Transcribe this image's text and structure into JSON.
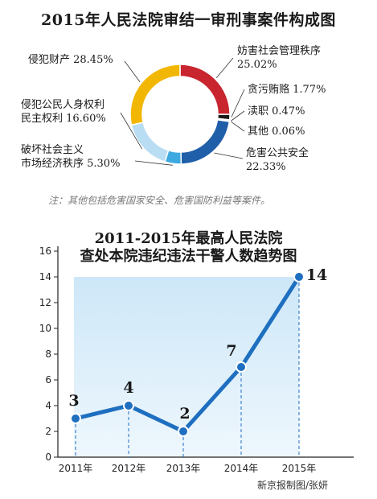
{
  "chart_data": [
    {
      "type": "pie",
      "title": "2015年人民法院审结一审刑事案件构成图",
      "slices": [
        {
          "label": "妨害社会管理秩序",
          "value_label": "25.02%",
          "value": 25.02,
          "color": "#c8252f"
        },
        {
          "label": "贪污贿赂",
          "value_label": "1.77%",
          "value": 1.77,
          "color": "#1a1a1a"
        },
        {
          "label": "渎职",
          "value_label": "0.47%",
          "value": 0.47,
          "color": "#f0f0f0"
        },
        {
          "label": "其他",
          "value_label": "0.06%",
          "value": 0.06,
          "color": "#e8e8e8"
        },
        {
          "label": "危害公共安全",
          "value_label": "22.33%",
          "value": 22.33,
          "color": "#1f5ea8"
        },
        {
          "label": "破坏社会主义市场经济秩序",
          "value_label": "5.30%",
          "value": 5.3,
          "color": "#3da9e0"
        },
        {
          "label": "侵犯公民人身权利民主权利",
          "value_label": "16.60%",
          "value": 16.6,
          "color": "#b9ddf2"
        },
        {
          "label": "侵犯财产",
          "value_label": "28.45%",
          "value": 28.45,
          "color": "#f2b705"
        }
      ],
      "labels_display": {
        "s0": [
          "妨害社会管理秩序",
          "25.02%"
        ],
        "s1": "贪污贿赂 1.77%",
        "s2": "渎职 0.47%",
        "s3": "其他 0.06%",
        "s4": [
          "危害公共安全",
          "22.33%"
        ],
        "s5": [
          "破坏社会主义",
          "市场经济秩序 5.30%"
        ],
        "s6": [
          "侵犯公民人身权利",
          "民主权利 16.60%"
        ],
        "s7": "侵犯财产 28.45%"
      },
      "note": "注：其他包括危害国家安全、危害国防利益等案件。"
    },
    {
      "type": "line",
      "title_lines": [
        "2011-2015年最高人民法院",
        "查处本院违纪违法干警人数趋势图"
      ],
      "categories": [
        "2011年",
        "2012年",
        "2013年",
        "2014年",
        "2015年"
      ],
      "values": [
        3,
        4,
        2,
        7,
        14
      ],
      "ylim": [
        0,
        16
      ],
      "yticks": [
        0,
        2,
        4,
        6,
        8,
        10,
        12,
        14,
        16
      ],
      "line_color": "#1f6fc0",
      "fill_color": "#cde7f8"
    }
  ],
  "credit": "新京报制图/张妍"
}
